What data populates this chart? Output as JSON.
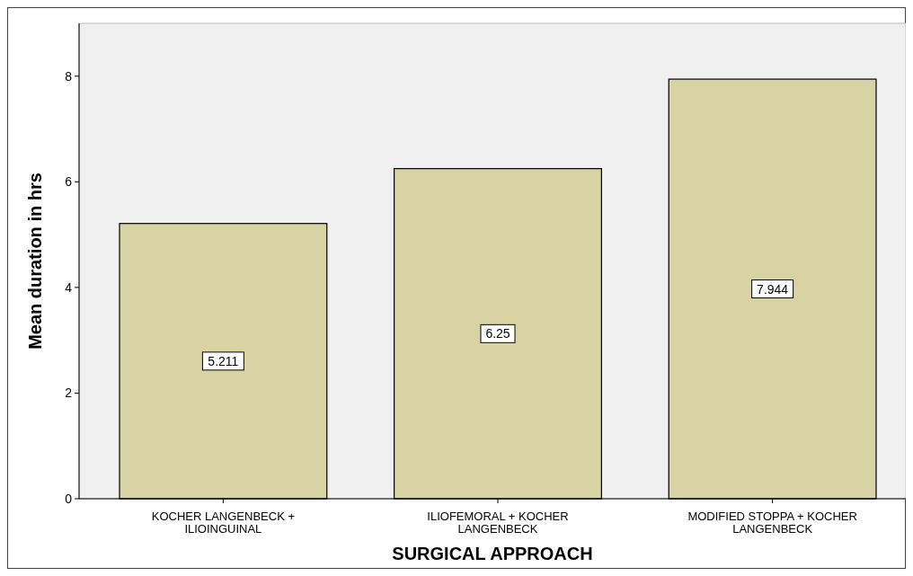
{
  "chart_data": {
    "type": "bar",
    "xlabel": "SURGICAL APPROACH",
    "ylabel": "Mean duration in hrs",
    "categories": [
      "KOCHER LANGENBECK + ILIOINGUINAL",
      "ILIOFEMORAL + KOCHER LANGENBECK",
      "MODIFIED STOPPA + KOCHER LANGENBECK"
    ],
    "values": [
      5.211,
      6.25,
      7.944
    ],
    "color": "#d8d3a2",
    "ylim": [
      0,
      9
    ],
    "yticks": [
      0,
      2,
      4,
      6,
      8
    ],
    "data_labels": true,
    "grid": false
  }
}
